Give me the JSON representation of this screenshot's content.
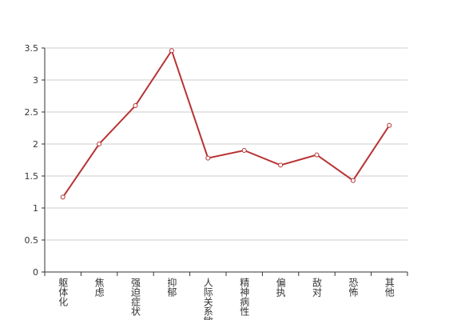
{
  "chart_data": {
    "type": "line",
    "categories": [
      "躯体化",
      "焦虑",
      "强迫症状",
      "抑郁",
      "人际关系敏感",
      "精神病性",
      "偏执",
      "敌对",
      "恐怖",
      "其他"
    ],
    "series": [
      {
        "color": "#b83232",
        "values": [
          1.17,
          2.0,
          2.6,
          3.46,
          1.78,
          1.9,
          1.67,
          1.83,
          1.43,
          2.29
        ]
      }
    ],
    "ylim": [
      0,
      3.5
    ],
    "yticks": [
      0,
      0.5,
      1,
      1.5,
      2,
      2.5,
      3,
      3.5
    ],
    "grid": true
  }
}
